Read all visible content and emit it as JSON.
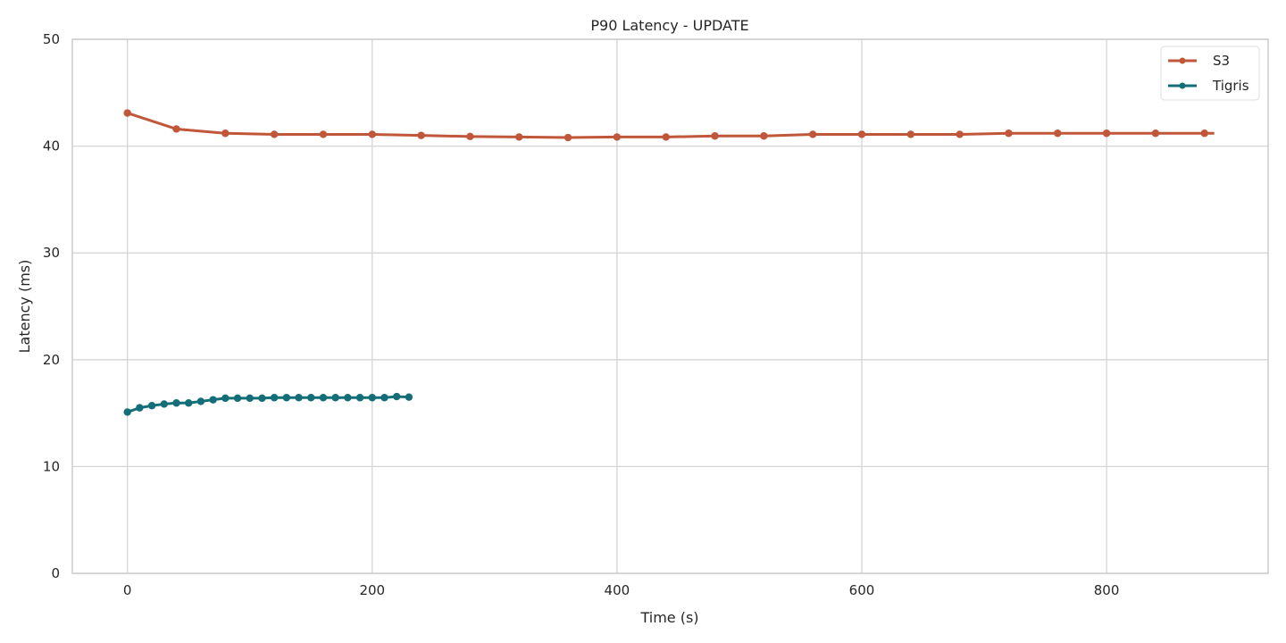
{
  "chart_data": {
    "type": "line",
    "title": "P90 Latency - UPDATE",
    "xlabel": "Time (s)",
    "ylabel": "Latency (ms)",
    "xlim": [
      -45,
      932
    ],
    "ylim": [
      0,
      50
    ],
    "xticks": [
      0,
      200,
      400,
      600,
      800
    ],
    "yticks": [
      0,
      10,
      20,
      30,
      40,
      50
    ],
    "grid": true,
    "legend_position": "upper right",
    "series": [
      {
        "name": "S3",
        "color": "#C0573A",
        "x": [
          0,
          40,
          80,
          120,
          160,
          200,
          240,
          280,
          320,
          360,
          400,
          440,
          480,
          520,
          560,
          600,
          640,
          680,
          720,
          760,
          800,
          840,
          880
        ],
        "y": [
          43.1,
          41.6,
          41.2,
          41.1,
          41.1,
          41.1,
          41.0,
          40.9,
          40.85,
          40.8,
          40.85,
          40.85,
          40.95,
          40.95,
          41.1,
          41.1,
          41.1,
          41.1,
          41.2,
          41.2,
          41.2,
          41.2,
          41.2
        ],
        "line_end_x": 888
      },
      {
        "name": "Tigris",
        "color": "#146E78",
        "x": [
          0,
          10,
          20,
          30,
          40,
          50,
          60,
          70,
          80,
          90,
          100,
          110,
          120,
          130,
          140,
          150,
          160,
          170,
          180,
          190,
          200,
          210,
          220,
          230
        ],
        "y": [
          15.1,
          15.5,
          15.7,
          15.85,
          15.95,
          15.95,
          16.1,
          16.25,
          16.4,
          16.4,
          16.4,
          16.4,
          16.45,
          16.45,
          16.45,
          16.45,
          16.45,
          16.45,
          16.45,
          16.45,
          16.45,
          16.45,
          16.55,
          16.5
        ]
      }
    ]
  }
}
